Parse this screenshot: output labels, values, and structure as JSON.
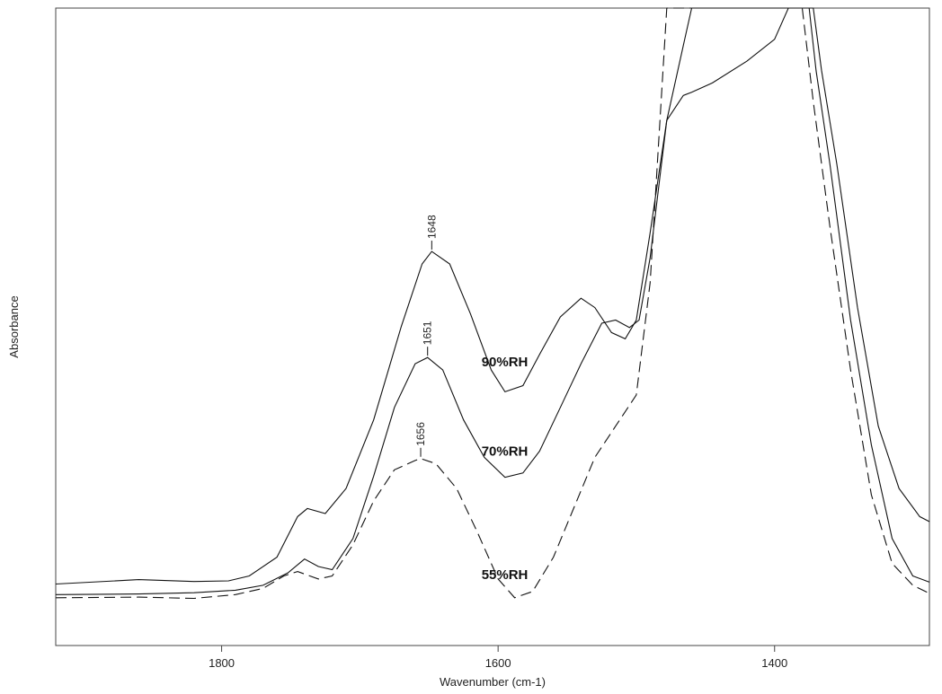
{
  "chart_data": {
    "type": "line",
    "title": "",
    "xlabel": "Wavenumber (cm-1)",
    "ylabel": "Absorbance",
    "x_reversed": true,
    "xlim": [
      1920,
      1288
    ],
    "ylim": [
      0,
      1
    ],
    "y_tick_labels_shown": false,
    "grid": false,
    "legend": "inline labels",
    "x_ticks": [
      1800,
      1600,
      1400
    ],
    "series": [
      {
        "label": "90%RH",
        "style": "solid",
        "peak": {
          "x": 1648,
          "label": "1648"
        },
        "points": [
          [
            1920,
            0.077
          ],
          [
            1860,
            0.084
          ],
          [
            1820,
            0.081
          ],
          [
            1795,
            0.082
          ],
          [
            1780,
            0.09
          ],
          [
            1760,
            0.12
          ],
          [
            1745,
            0.185
          ],
          [
            1738,
            0.198
          ],
          [
            1725,
            0.19
          ],
          [
            1710,
            0.23
          ],
          [
            1690,
            0.34
          ],
          [
            1670,
            0.49
          ],
          [
            1655,
            0.59
          ],
          [
            1648,
            0.61
          ],
          [
            1635,
            0.59
          ],
          [
            1620,
            0.51
          ],
          [
            1605,
            0.42
          ],
          [
            1595,
            0.385
          ],
          [
            1582,
            0.395
          ],
          [
            1570,
            0.445
          ],
          [
            1555,
            0.505
          ],
          [
            1540,
            0.535
          ],
          [
            1530,
            0.52
          ],
          [
            1518,
            0.48
          ],
          [
            1508,
            0.47
          ],
          [
            1500,
            0.5
          ],
          [
            1490,
            0.64
          ],
          [
            1478,
            0.82
          ],
          [
            1466,
            0.86
          ],
          [
            1460,
            0.865
          ],
          [
            1445,
            0.88
          ],
          [
            1420,
            0.915
          ],
          [
            1400,
            0.95
          ],
          [
            1390,
            1.0
          ],
          [
            1372,
            1.0
          ],
          [
            1366,
            0.9
          ],
          [
            1355,
            0.75
          ],
          [
            1340,
            0.52
          ],
          [
            1325,
            0.33
          ],
          [
            1310,
            0.23
          ],
          [
            1295,
            0.185
          ],
          [
            1288,
            0.177
          ]
        ]
      },
      {
        "label": "70%RH",
        "style": "solid",
        "peak": {
          "x": 1651,
          "label": "1651"
        },
        "points": [
          [
            1920,
            0.06
          ],
          [
            1860,
            0.061
          ],
          [
            1820,
            0.063
          ],
          [
            1790,
            0.067
          ],
          [
            1770,
            0.075
          ],
          [
            1752,
            0.095
          ],
          [
            1740,
            0.117
          ],
          [
            1730,
            0.105
          ],
          [
            1720,
            0.1
          ],
          [
            1705,
            0.15
          ],
          [
            1690,
            0.25
          ],
          [
            1675,
            0.36
          ],
          [
            1660,
            0.43
          ],
          [
            1651,
            0.44
          ],
          [
            1640,
            0.42
          ],
          [
            1625,
            0.34
          ],
          [
            1610,
            0.28
          ],
          [
            1595,
            0.248
          ],
          [
            1582,
            0.255
          ],
          [
            1570,
            0.29
          ],
          [
            1555,
            0.36
          ],
          [
            1540,
            0.43
          ],
          [
            1525,
            0.495
          ],
          [
            1515,
            0.5
          ],
          [
            1505,
            0.488
          ],
          [
            1498,
            0.5
          ],
          [
            1490,
            0.6
          ],
          [
            1478,
            0.82
          ],
          [
            1466,
            0.94
          ],
          [
            1460,
            1.0
          ],
          [
            1375,
            1.0
          ],
          [
            1370,
            0.9
          ],
          [
            1360,
            0.75
          ],
          [
            1345,
            0.5
          ],
          [
            1330,
            0.3
          ],
          [
            1315,
            0.15
          ],
          [
            1300,
            0.09
          ],
          [
            1288,
            0.08
          ]
        ]
      },
      {
        "label": "55%RH",
        "style": "dashed",
        "peak": {
          "x": 1656,
          "label": "1656"
        },
        "points": [
          [
            1920,
            0.055
          ],
          [
            1860,
            0.056
          ],
          [
            1820,
            0.054
          ],
          [
            1790,
            0.06
          ],
          [
            1770,
            0.07
          ],
          [
            1755,
            0.09
          ],
          [
            1745,
            0.097
          ],
          [
            1730,
            0.085
          ],
          [
            1720,
            0.09
          ],
          [
            1705,
            0.14
          ],
          [
            1690,
            0.21
          ],
          [
            1675,
            0.26
          ],
          [
            1660,
            0.275
          ],
          [
            1656,
            0.278
          ],
          [
            1645,
            0.27
          ],
          [
            1630,
            0.23
          ],
          [
            1615,
            0.16
          ],
          [
            1600,
            0.085
          ],
          [
            1588,
            0.055
          ],
          [
            1575,
            0.065
          ],
          [
            1560,
            0.12
          ],
          [
            1545,
            0.2
          ],
          [
            1530,
            0.28
          ],
          [
            1515,
            0.33
          ],
          [
            1500,
            0.38
          ],
          [
            1490,
            0.56
          ],
          [
            1478,
            1.0
          ],
          [
            1380,
            1.0
          ],
          [
            1372,
            0.85
          ],
          [
            1360,
            0.65
          ],
          [
            1345,
            0.42
          ],
          [
            1330,
            0.22
          ],
          [
            1315,
            0.11
          ],
          [
            1300,
            0.075
          ],
          [
            1288,
            0.062
          ]
        ]
      }
    ]
  }
}
